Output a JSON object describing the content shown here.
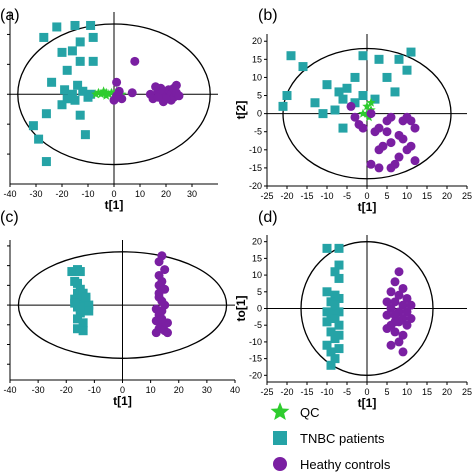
{
  "colors": {
    "qc": "#2ecc2e",
    "tnbc": "#25a3a6",
    "healthy": "#7a1fa2",
    "axis": "#000000"
  },
  "legend": [
    {
      "key": "qc",
      "label": "QC",
      "shape": "star"
    },
    {
      "key": "tnbc",
      "label": "TNBC patients",
      "shape": "square"
    },
    {
      "key": "healthy",
      "label": "Heathy controls",
      "shape": "circle"
    }
  ],
  "chart_data": [
    {
      "panel_label": "(a)",
      "type": "scatter",
      "xlabel": "t[1]",
      "ylabel": "",
      "xlim": [
        -40,
        40
      ],
      "ylim": [
        -60,
        55
      ],
      "xticks": [
        -40,
        -30,
        -20,
        -10,
        0,
        10,
        20,
        30
      ],
      "yticks": [
        -40,
        -20,
        0,
        20,
        40
      ],
      "yticks_labels_visible": false,
      "ellipse": {
        "rx": 37,
        "ry": 47
      },
      "series": [
        {
          "key": "tnbc",
          "points": [
            [
              -27,
              38
            ],
            [
              -22,
              45
            ],
            [
              -15,
              46
            ],
            [
              -9,
              46
            ],
            [
              -8,
              38
            ],
            [
              -20,
              28
            ],
            [
              -16,
              29
            ],
            [
              -13,
              35
            ],
            [
              -18,
              16
            ],
            [
              -13,
              22
            ],
            [
              -8,
              22
            ],
            [
              -24,
              8
            ],
            [
              -19,
              3
            ],
            [
              -16,
              0
            ],
            [
              -12,
              2
            ],
            [
              -10,
              -2
            ],
            [
              -15,
              -4
            ],
            [
              -20,
              -7
            ],
            [
              -26,
              -13
            ],
            [
              -13,
              -14
            ],
            [
              -31,
              -21
            ],
            [
              -29,
              -30
            ],
            [
              -11,
              -27
            ],
            [
              -26,
              -45
            ],
            [
              -18,
              -3
            ],
            [
              -9,
              0
            ],
            [
              -14,
              6
            ]
          ]
        },
        {
          "key": "qc",
          "points": [
            [
              -6,
              1
            ],
            [
              -5,
              0
            ],
            [
              -4,
              2
            ],
            [
              -3,
              1
            ],
            [
              -2,
              0
            ],
            [
              -1,
              1
            ],
            [
              0,
              0
            ],
            [
              1,
              2
            ],
            [
              2,
              1
            ],
            [
              3,
              0
            ],
            [
              -7,
              0
            ],
            [
              -3,
              -1
            ]
          ]
        },
        {
          "key": "healthy",
          "points": [
            [
              8,
              22
            ],
            [
              1,
              8
            ],
            [
              0,
              -4
            ],
            [
              3,
              -3
            ],
            [
              1,
              -1
            ],
            [
              7,
              1
            ],
            [
              14,
              0
            ],
            [
              15,
              -3
            ],
            [
              17,
              2
            ],
            [
              18,
              4
            ],
            [
              19,
              -1
            ],
            [
              20,
              1
            ],
            [
              21,
              3
            ],
            [
              21,
              -2
            ],
            [
              22,
              0
            ],
            [
              23,
              4
            ],
            [
              23,
              -2
            ],
            [
              24,
              1
            ],
            [
              25,
              -1
            ],
            [
              22,
              -4
            ],
            [
              19,
              -5
            ],
            [
              18,
              3
            ],
            [
              16,
              5
            ],
            [
              24,
              6
            ],
            [
              20,
              -3
            ],
            [
              2,
              2
            ],
            [
              17,
              -2
            ]
          ]
        }
      ]
    },
    {
      "panel_label": "(b)",
      "type": "scatter",
      "xlabel": "t[1]",
      "ylabel": "t[2]",
      "xlim": [
        -25,
        25
      ],
      "ylim": [
        -20,
        22
      ],
      "xticks": [
        -25,
        -20,
        -15,
        -10,
        -5,
        0,
        5,
        10,
        15,
        20,
        25
      ],
      "yticks": [
        -20,
        -15,
        -10,
        -5,
        0,
        5,
        10,
        15,
        20
      ],
      "ellipse": {
        "rx": 21,
        "ry": 18
      },
      "series": [
        {
          "key": "tnbc",
          "points": [
            [
              -19,
              16
            ],
            [
              -16,
              13
            ],
            [
              -10,
              8
            ],
            [
              -5,
              7
            ],
            [
              -3,
              10
            ],
            [
              -1,
              16
            ],
            [
              3,
              15
            ],
            [
              8,
              15
            ],
            [
              10,
              12
            ],
            [
              11,
              17
            ],
            [
              5,
              10
            ],
            [
              7,
              6
            ],
            [
              -13,
              3
            ],
            [
              -6,
              4
            ],
            [
              -3,
              3
            ],
            [
              -1,
              5
            ],
            [
              -8,
              1
            ],
            [
              -20,
              5
            ],
            [
              -21,
              2
            ],
            [
              -11,
              0
            ],
            [
              -6,
              -4
            ],
            [
              -7,
              6
            ],
            [
              2,
              4
            ]
          ]
        },
        {
          "key": "qc",
          "points": [
            [
              0,
              2
            ],
            [
              0,
              0
            ],
            [
              1,
              1
            ],
            [
              -1,
              0
            ],
            [
              0.5,
              -1
            ],
            [
              1,
              3
            ]
          ]
        },
        {
          "key": "healthy",
          "points": [
            [
              -4,
              2
            ],
            [
              -3,
              -1
            ],
            [
              1,
              0
            ],
            [
              -1,
              -4
            ],
            [
              2,
              -5
            ],
            [
              5,
              -2
            ],
            [
              3,
              -4
            ],
            [
              6,
              -1
            ],
            [
              8,
              -6
            ],
            [
              9,
              -2
            ],
            [
              10,
              -1
            ],
            [
              11,
              -2
            ],
            [
              12,
              -4
            ],
            [
              8,
              -12
            ],
            [
              6,
              -8
            ],
            [
              11,
              -9
            ],
            [
              4,
              -9
            ],
            [
              12,
              -13
            ],
            [
              3,
              -15
            ],
            [
              6,
              -15
            ],
            [
              1,
              -14
            ],
            [
              7,
              -14
            ],
            [
              3,
              -10
            ],
            [
              -2,
              -3
            ],
            [
              9,
              -7
            ],
            [
              5,
              -5
            ],
            [
              10,
              -10
            ]
          ]
        }
      ]
    },
    {
      "panel_label": "(c)",
      "type": "scatter",
      "xlabel": "t[1]",
      "ylabel": "",
      "xlim": [
        -40,
        40
      ],
      "ylim": [
        -38,
        33
      ],
      "xticks": [
        -40,
        -30,
        -20,
        -10,
        0,
        10,
        20,
        30,
        40
      ],
      "yticks": [
        -30,
        -20,
        -10,
        0,
        10,
        20,
        30
      ],
      "yticks_labels_visible": false,
      "ellipse": {
        "rx": 37,
        "ry": 27
      },
      "series": [
        {
          "key": "tnbc",
          "points": [
            [
              -18,
              17
            ],
            [
              -16,
              18
            ],
            [
              -15,
              17
            ],
            [
              -17,
              12
            ],
            [
              -16,
              11
            ],
            [
              -15,
              8
            ],
            [
              -16,
              6
            ],
            [
              -14,
              6
            ],
            [
              -17,
              3
            ],
            [
              -15,
              2
            ],
            [
              -13,
              3
            ],
            [
              -15,
              0
            ],
            [
              -16,
              -1
            ],
            [
              -14,
              -1
            ],
            [
              -12,
              0
            ],
            [
              -15,
              -4
            ],
            [
              -16,
              -7
            ],
            [
              -14,
              -9
            ],
            [
              -16,
              -12
            ],
            [
              -14,
              -13
            ],
            [
              -17,
              1
            ],
            [
              -13,
              4
            ],
            [
              -15,
              -2
            ],
            [
              -12,
              -3
            ]
          ]
        },
        {
          "key": "healthy",
          "points": [
            [
              14,
              25
            ],
            [
              13,
              22
            ],
            [
              15,
              18
            ],
            [
              13,
              15
            ],
            [
              14,
              12
            ],
            [
              13,
              10
            ],
            [
              15,
              8
            ],
            [
              13,
              4
            ],
            [
              14,
              2
            ],
            [
              15,
              0
            ],
            [
              12,
              -2
            ],
            [
              14,
              -3
            ],
            [
              13,
              -5
            ],
            [
              12,
              -8
            ],
            [
              16,
              -9
            ],
            [
              14,
              -11
            ],
            [
              13,
              -12
            ],
            [
              15,
              -13
            ],
            [
              12,
              -14
            ],
            [
              16,
              -14
            ],
            [
              14,
              -7
            ],
            [
              13,
              6
            ]
          ]
        }
      ]
    },
    {
      "panel_label": "(d)",
      "type": "scatter",
      "xlabel": "t[1]",
      "ylabel": "to[1]",
      "xlim": [
        -25,
        25
      ],
      "ylim": [
        -22,
        22
      ],
      "xticks": [
        -25,
        -20,
        -15,
        -10,
        -5,
        0,
        5,
        10,
        15,
        20,
        25
      ],
      "yticks": [
        -20,
        -15,
        -10,
        -5,
        0,
        5,
        10,
        15,
        20
      ],
      "ellipse": {
        "rx": 16.5,
        "ry": 20
      },
      "series": [
        {
          "key": "tnbc",
          "points": [
            [
              -10,
              18
            ],
            [
              -7,
              18
            ],
            [
              -7,
              13
            ],
            [
              -8,
              11
            ],
            [
              -7,
              9
            ],
            [
              -10,
              5
            ],
            [
              -8,
              4
            ],
            [
              -7,
              3
            ],
            [
              -9,
              2
            ],
            [
              -8,
              0
            ],
            [
              -7,
              -1
            ],
            [
              -9,
              -2
            ],
            [
              -8,
              -3
            ],
            [
              -10,
              -4
            ],
            [
              -7,
              -5
            ],
            [
              -9,
              -7
            ],
            [
              -8,
              -9
            ],
            [
              -10,
              -11
            ],
            [
              -7,
              -12
            ],
            [
              -9,
              -13
            ],
            [
              -8,
              -15
            ],
            [
              -9,
              -17
            ],
            [
              -8,
              1
            ],
            [
              -7,
              -8
            ],
            [
              -10,
              -1
            ]
          ]
        },
        {
          "key": "healthy",
          "points": [
            [
              8,
              11
            ],
            [
              7,
              8
            ],
            [
              9,
              6
            ],
            [
              6,
              5
            ],
            [
              8,
              4
            ],
            [
              10,
              3
            ],
            [
              5,
              2
            ],
            [
              7,
              2
            ],
            [
              9,
              1
            ],
            [
              11,
              1
            ],
            [
              6,
              0
            ],
            [
              8,
              -1
            ],
            [
              10,
              -1
            ],
            [
              7,
              -2
            ],
            [
              9,
              -3
            ],
            [
              5,
              -2
            ],
            [
              8,
              -4
            ],
            [
              6,
              -5
            ],
            [
              10,
              -5
            ],
            [
              7,
              -7
            ],
            [
              9,
              -8
            ],
            [
              8,
              -10
            ],
            [
              6,
              -11
            ],
            [
              9,
              -13
            ],
            [
              7,
              -4
            ],
            [
              11,
              -3
            ],
            [
              5,
              -6
            ]
          ]
        }
      ]
    }
  ]
}
